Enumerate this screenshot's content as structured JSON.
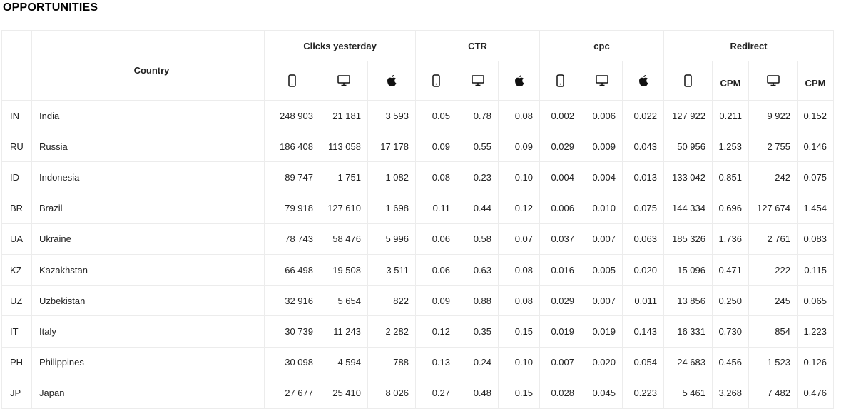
{
  "page_title": "OPPORTUNITIES",
  "groups": {
    "clicks": "Clicks yesterday",
    "ctr": "CTR",
    "cpc": "cpc",
    "redirect": "Redirect"
  },
  "headers": {
    "country": "Country",
    "cpm_1": "CPM",
    "cpm_2": "CPM"
  },
  "icons": {
    "mobile": "mobile-icon",
    "desktop": "desktop-icon",
    "apple": "apple-icon"
  },
  "rows": [
    {
      "code": "IN",
      "country": "India",
      "clicks_mobile": "248 903",
      "clicks_desktop": "21 181",
      "clicks_apple": "3 593",
      "ctr_mobile": "0.05",
      "ctr_desktop": "0.78",
      "ctr_apple": "0.08",
      "cpc_mobile": "0.002",
      "cpc_desktop": "0.006",
      "cpc_apple": "0.022",
      "redirect_mobile": "127 922",
      "redirect_mobile_cpm": "0.211",
      "redirect_desktop": "9 922",
      "redirect_desktop_cpm": "0.152"
    },
    {
      "code": "RU",
      "country": "Russia",
      "clicks_mobile": "186 408",
      "clicks_desktop": "113 058",
      "clicks_apple": "17 178",
      "ctr_mobile": "0.09",
      "ctr_desktop": "0.55",
      "ctr_apple": "0.09",
      "cpc_mobile": "0.029",
      "cpc_desktop": "0.009",
      "cpc_apple": "0.043",
      "redirect_mobile": "50 956",
      "redirect_mobile_cpm": "1.253",
      "redirect_desktop": "2 755",
      "redirect_desktop_cpm": "0.146"
    },
    {
      "code": "ID",
      "country": "Indonesia",
      "clicks_mobile": "89 747",
      "clicks_desktop": "1 751",
      "clicks_apple": "1 082",
      "ctr_mobile": "0.08",
      "ctr_desktop": "0.23",
      "ctr_apple": "0.10",
      "cpc_mobile": "0.004",
      "cpc_desktop": "0.004",
      "cpc_apple": "0.013",
      "redirect_mobile": "133 042",
      "redirect_mobile_cpm": "0.851",
      "redirect_desktop": "242",
      "redirect_desktop_cpm": "0.075"
    },
    {
      "code": "BR",
      "country": "Brazil",
      "clicks_mobile": "79 918",
      "clicks_desktop": "127 610",
      "clicks_apple": "1 698",
      "ctr_mobile": "0.11",
      "ctr_desktop": "0.44",
      "ctr_apple": "0.12",
      "cpc_mobile": "0.006",
      "cpc_desktop": "0.010",
      "cpc_apple": "0.075",
      "redirect_mobile": "144 334",
      "redirect_mobile_cpm": "0.696",
      "redirect_desktop": "127 674",
      "redirect_desktop_cpm": "1.454"
    },
    {
      "code": "UA",
      "country": "Ukraine",
      "clicks_mobile": "78 743",
      "clicks_desktop": "58 476",
      "clicks_apple": "5 996",
      "ctr_mobile": "0.06",
      "ctr_desktop": "0.58",
      "ctr_apple": "0.07",
      "cpc_mobile": "0.037",
      "cpc_desktop": "0.007",
      "cpc_apple": "0.063",
      "redirect_mobile": "185 326",
      "redirect_mobile_cpm": "1.736",
      "redirect_desktop": "2 761",
      "redirect_desktop_cpm": "0.083"
    },
    {
      "code": "KZ",
      "country": "Kazakhstan",
      "clicks_mobile": "66 498",
      "clicks_desktop": "19 508",
      "clicks_apple": "3 511",
      "ctr_mobile": "0.06",
      "ctr_desktop": "0.63",
      "ctr_apple": "0.08",
      "cpc_mobile": "0.016",
      "cpc_desktop": "0.005",
      "cpc_apple": "0.020",
      "redirect_mobile": "15 096",
      "redirect_mobile_cpm": "0.471",
      "redirect_desktop": "222",
      "redirect_desktop_cpm": "0.115"
    },
    {
      "code": "UZ",
      "country": "Uzbekistan",
      "clicks_mobile": "32 916",
      "clicks_desktop": "5 654",
      "clicks_apple": "822",
      "ctr_mobile": "0.09",
      "ctr_desktop": "0.88",
      "ctr_apple": "0.08",
      "cpc_mobile": "0.029",
      "cpc_desktop": "0.007",
      "cpc_apple": "0.011",
      "redirect_mobile": "13 856",
      "redirect_mobile_cpm": "0.250",
      "redirect_desktop": "245",
      "redirect_desktop_cpm": "0.065"
    },
    {
      "code": "IT",
      "country": "Italy",
      "clicks_mobile": "30 739",
      "clicks_desktop": "11 243",
      "clicks_apple": "2 282",
      "ctr_mobile": "0.12",
      "ctr_desktop": "0.35",
      "ctr_apple": "0.15",
      "cpc_mobile": "0.019",
      "cpc_desktop": "0.019",
      "cpc_apple": "0.143",
      "redirect_mobile": "16 331",
      "redirect_mobile_cpm": "0.730",
      "redirect_desktop": "854",
      "redirect_desktop_cpm": "1.223"
    },
    {
      "code": "PH",
      "country": "Philippines",
      "clicks_mobile": "30 098",
      "clicks_desktop": "4 594",
      "clicks_apple": "788",
      "ctr_mobile": "0.13",
      "ctr_desktop": "0.24",
      "ctr_apple": "0.10",
      "cpc_mobile": "0.007",
      "cpc_desktop": "0.020",
      "cpc_apple": "0.054",
      "redirect_mobile": "24 683",
      "redirect_mobile_cpm": "0.456",
      "redirect_desktop": "1 523",
      "redirect_desktop_cpm": "0.126"
    },
    {
      "code": "JP",
      "country": "Japan",
      "clicks_mobile": "27 677",
      "clicks_desktop": "25 410",
      "clicks_apple": "8 026",
      "ctr_mobile": "0.27",
      "ctr_desktop": "0.48",
      "ctr_apple": "0.15",
      "cpc_mobile": "0.028",
      "cpc_desktop": "0.045",
      "cpc_apple": "0.223",
      "redirect_mobile": "5 461",
      "redirect_mobile_cpm": "3.268",
      "redirect_desktop": "7 482",
      "redirect_desktop_cpm": "0.476"
    }
  ]
}
